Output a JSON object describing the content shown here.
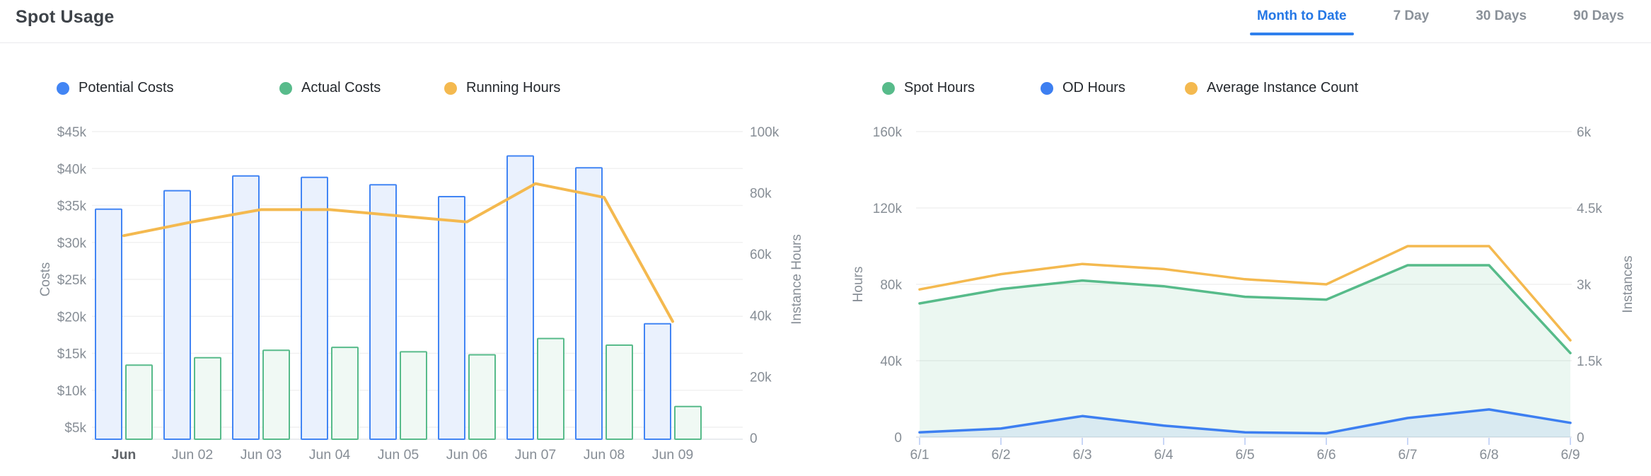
{
  "header": {
    "title": "Spot Usage",
    "tabs": [
      {
        "label": "Month to Date",
        "active": true
      },
      {
        "label": "7 Day",
        "active": false
      },
      {
        "label": "30 Days",
        "active": false
      },
      {
        "label": "90 Days",
        "active": false
      }
    ],
    "active_tab_color": "#2477E5",
    "inactive_tab_color": "#8A9199"
  },
  "chart_data": [
    {
      "id": "spot-usage-costs",
      "type": "bar",
      "subtype": "grouped-bars-with-line",
      "categories": [
        "Jun",
        "Jun 02",
        "Jun 03",
        "Jun 04",
        "Jun 05",
        "Jun 06",
        "Jun 07",
        "Jun 08",
        "Jun 09"
      ],
      "bold_first_category": true,
      "left_axis": {
        "label": "Costs",
        "ticks": [
          "$45k",
          "$40k",
          "$35k",
          "$30k",
          "$25k",
          "$20k",
          "$15k",
          "$10k",
          "$5k"
        ],
        "range": [
          5000,
          45000
        ]
      },
      "right_axis": {
        "label": "Instance Hours",
        "ticks": [
          "100k",
          "80k",
          "60k",
          "40k",
          "20k",
          "0"
        ],
        "range": [
          0,
          100000
        ]
      },
      "grid": "horizontal-only",
      "legend_position": "top",
      "series": [
        {
          "name": "Potential Costs",
          "type": "bar",
          "axis": "left",
          "color": "#4285F4",
          "fill": "#EAF1FD",
          "values": [
            34500,
            37000,
            39000,
            38800,
            37800,
            36200,
            41700,
            40100,
            19000
          ]
        },
        {
          "name": "Actual Costs",
          "type": "bar",
          "axis": "left",
          "color": "#58BB8B",
          "fill": "#F0F9F4",
          "values": [
            13400,
            14400,
            15400,
            15800,
            15200,
            14800,
            17000,
            16100,
            7800
          ]
        },
        {
          "name": "Running Hours",
          "type": "line",
          "axis": "right",
          "color": "#F4B94F",
          "values": [
            66000,
            70500,
            74500,
            74500,
            72500,
            70500,
            83000,
            78500,
            38000
          ]
        }
      ]
    },
    {
      "id": "spot-usage-hours",
      "type": "area",
      "subtype": "area-lines-with-line",
      "categories": [
        "6/1",
        "6/2",
        "6/3",
        "6/4",
        "6/5",
        "6/6",
        "6/7",
        "6/8",
        "6/9"
      ],
      "bold_first_category": false,
      "left_axis": {
        "label": "Hours",
        "ticks": [
          "160k",
          "120k",
          "80k",
          "40k",
          "0"
        ],
        "range": [
          0,
          160000
        ]
      },
      "right_axis": {
        "label": "Instances",
        "ticks": [
          "6k",
          "4.5k",
          "3k",
          "1.5k",
          "0"
        ],
        "range": [
          0,
          6000
        ]
      },
      "grid": "horizontal-only",
      "legend_position": "top",
      "series": [
        {
          "name": "Spot Hours",
          "type": "area",
          "axis": "left",
          "color": "#57BB8A",
          "fill": "rgba(87,187,138,0.12)",
          "values": [
            70000,
            77500,
            82000,
            79000,
            73500,
            72000,
            90000,
            90000,
            44000
          ]
        },
        {
          "name": "OD Hours",
          "type": "area",
          "axis": "left",
          "color": "#3D7FF1",
          "fill": "rgba(61,127,241,0.10)",
          "values": [
            2500,
            4500,
            11000,
            6000,
            2500,
            2000,
            10000,
            14500,
            7500
          ]
        },
        {
          "name": "Average Instance Count",
          "type": "line",
          "axis": "right",
          "color": "#F4B94F",
          "values": [
            2900,
            3200,
            3400,
            3300,
            3100,
            3000,
            3750,
            3750,
            1900
          ]
        }
      ]
    }
  ],
  "colors": {
    "grid_line": "#F1F1F1",
    "axis_line": "#E2E5EA",
    "tick_mark": "#C9D7F7",
    "axis_text": "#878E96",
    "bold_axis_text": "#5F6368"
  }
}
